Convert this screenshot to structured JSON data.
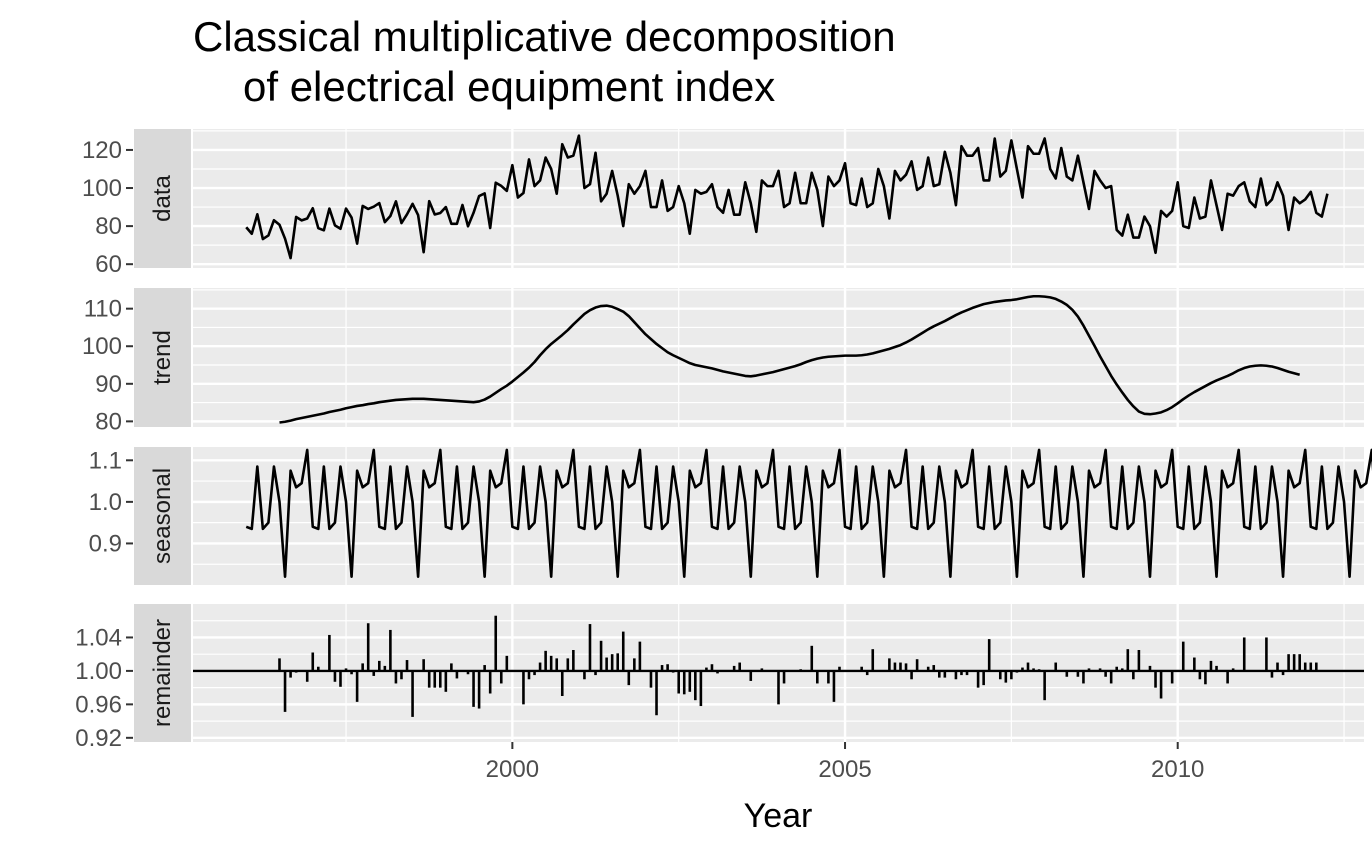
{
  "title_line1": "Classical multiplicative decomposition",
  "title_line2": "of electrical equipment index",
  "chart_data": {
    "type": "line",
    "xlabel": "Year",
    "x_ticks": [
      2000,
      2005,
      2010
    ],
    "xlim": [
      1995.2,
      2012.8
    ],
    "start": 1996.0,
    "panels": [
      {
        "name": "data",
        "type": "line",
        "ylim": [
          58,
          131
        ],
        "y_ticks": [
          60,
          80,
          100,
          120
        ],
        "y_tick_labels": [
          "60",
          "80",
          "100",
          "120"
        ],
        "values": [
          79.4,
          76.0,
          86.2,
          73.2,
          75.1,
          83.1,
          80.7,
          73.4,
          63.2,
          84.8,
          83.0,
          84.0,
          89.4,
          78.9,
          77.8,
          89.2,
          80.4,
          78.6,
          89.2,
          84.5,
          70.8,
          90.6,
          89.0,
          90.2,
          92.1,
          82.1,
          85.3,
          93.0,
          81.6,
          86.2,
          91.7,
          85.8,
          66.3,
          93.1,
          86.1,
          86.9,
          90.0,
          81.2,
          81.2,
          91.1,
          79.9,
          87.0,
          95.8,
          97.2,
          79.0,
          102.8,
          101.1,
          98.5,
          112.0,
          95.0,
          97.4,
          115.0,
          101.0,
          104.0,
          116.0,
          110.0,
          97.0,
          123.0,
          116.0,
          117.0,
          127.5,
          100.0,
          102.0,
          118.5,
          93.0,
          97.0,
          109.0,
          96.0,
          80.0,
          102.0,
          97.0,
          101.0,
          109.0,
          90.0,
          90.0,
          104.0,
          88.0,
          90.0,
          101.0,
          92.0,
          76.0,
          99.0,
          97.0,
          98.0,
          102.0,
          90.0,
          87.0,
          99.0,
          86.0,
          86.0,
          103.0,
          92.0,
          77.0,
          104.0,
          101.0,
          101.0,
          109.0,
          90.0,
          92.0,
          108.0,
          92.0,
          92.0,
          108.0,
          99.0,
          80.0,
          106.0,
          101.0,
          104.0,
          113.0,
          92.0,
          91.0,
          105.0,
          90.0,
          92.0,
          110.0,
          101.0,
          84.0,
          109.0,
          104.0,
          107.0,
          114.0,
          99.0,
          101.0,
          116.0,
          101.0,
          102.0,
          119.0,
          108.0,
          91.0,
          122.0,
          117.0,
          117.0,
          121.0,
          104.0,
          104.0,
          126.0,
          106.0,
          109.0,
          125.0,
          110.0,
          95.0,
          122.0,
          118.0,
          118.0,
          126.0,
          110.0,
          105.0,
          121.0,
          106.0,
          104.0,
          117.0,
          103.0,
          89.0,
          109.0,
          104.0,
          100.0,
          101.0,
          78.0,
          75.0,
          86.0,
          74.0,
          74.0,
          85.0,
          80.0,
          66.0,
          88.0,
          85.0,
          88.0,
          103.0,
          80.0,
          79.0,
          95.0,
          84.0,
          85.0,
          104.0,
          91.0,
          78.0,
          97.0,
          96.0,
          101.0,
          103.0,
          93.0,
          90.0,
          105.0,
          91.0,
          94.0,
          103.0,
          96.0,
          78.0,
          95.0,
          92.0,
          94.0,
          98.0,
          87.0,
          85.0,
          97.0
        ]
      },
      {
        "name": "trend",
        "type": "line",
        "ylim": [
          78.5,
          115.5
        ],
        "y_ticks": [
          80,
          90,
          100,
          110
        ],
        "y_tick_labels": [
          "80",
          "90",
          "100",
          "110"
        ],
        "offset": 6,
        "values": [
          79.7,
          79.9,
          80.2,
          80.6,
          80.9,
          81.2,
          81.5,
          81.8,
          82.1,
          82.5,
          82.8,
          83.1,
          83.5,
          83.8,
          84.1,
          84.3,
          84.6,
          84.8,
          85.1,
          85.3,
          85.5,
          85.7,
          85.8,
          85.9,
          86.0,
          86.0,
          86.0,
          85.9,
          85.8,
          85.7,
          85.6,
          85.5,
          85.4,
          85.3,
          85.2,
          85.1,
          85.3,
          85.8,
          86.6,
          87.6,
          88.6,
          89.5,
          90.6,
          91.8,
          93.0,
          94.3,
          95.8,
          97.6,
          99.2,
          100.6,
          101.8,
          103.0,
          104.3,
          105.8,
          107.2,
          108.6,
          109.6,
          110.3,
          110.7,
          110.8,
          110.5,
          109.9,
          109.2,
          108.0,
          106.4,
          104.8,
          103.2,
          101.9,
          100.6,
          99.5,
          98.4,
          97.6,
          96.9,
          96.2,
          95.5,
          95.0,
          94.7,
          94.4,
          94.1,
          93.7,
          93.3,
          93.0,
          92.7,
          92.4,
          92.1,
          92.0,
          92.2,
          92.5,
          92.8,
          93.1,
          93.5,
          93.9,
          94.3,
          94.7,
          95.2,
          95.8,
          96.3,
          96.7,
          97.0,
          97.2,
          97.3,
          97.4,
          97.5,
          97.5,
          97.5,
          97.6,
          97.8,
          98.1,
          98.5,
          98.9,
          99.3,
          99.8,
          100.3,
          101.0,
          101.8,
          102.7,
          103.6,
          104.5,
          105.3,
          106.0,
          106.7,
          107.5,
          108.3,
          109.0,
          109.6,
          110.2,
          110.7,
          111.2,
          111.5,
          111.8,
          112.0,
          112.2,
          112.3,
          112.5,
          112.8,
          113.1,
          113.3,
          113.3,
          113.2,
          113.0,
          112.6,
          111.9,
          111.0,
          109.7,
          107.9,
          105.5,
          102.8,
          100.1,
          97.3,
          94.7,
          92.1,
          89.8,
          87.7,
          85.7,
          84.0,
          82.6,
          82.0,
          81.9,
          82.1,
          82.4,
          83.0,
          83.8,
          84.8,
          85.9,
          86.9,
          87.8,
          88.6,
          89.4,
          90.2,
          90.9,
          91.5,
          92.1,
          92.8,
          93.6,
          94.2,
          94.6,
          94.8,
          94.9,
          94.8,
          94.6,
          94.2,
          93.7,
          93.2,
          92.8,
          92.4
        ]
      },
      {
        "name": "seasonal",
        "type": "line",
        "ylim": [
          0.8,
          1.132
        ],
        "y_ticks": [
          0.9,
          1.0,
          1.1
        ],
        "y_tick_labels": [
          "0.9",
          "1.0",
          "1.1"
        ],
        "pattern": [
          0.94,
          0.935,
          1.085,
          0.935,
          0.95,
          1.085,
          1.0,
          0.82,
          1.075,
          1.035,
          1.045,
          1.125
        ],
        "values": [
          0.94,
          0.935,
          1.085,
          0.935,
          0.95,
          1.085,
          1.0,
          0.82,
          1.075,
          1.035,
          1.045,
          1.125,
          0.94,
          0.935,
          1.085,
          0.935,
          0.95,
          1.085,
          1.0,
          0.82,
          1.075,
          1.035,
          1.045,
          1.125,
          0.94,
          0.935,
          1.085,
          0.935,
          0.95,
          1.085,
          1.0,
          0.82,
          1.075,
          1.035,
          1.045,
          1.125,
          0.94,
          0.935,
          1.085,
          0.935,
          0.95,
          1.085,
          1.0,
          0.82,
          1.075,
          1.035,
          1.045,
          1.125,
          0.94,
          0.935,
          1.085,
          0.935,
          0.95,
          1.085,
          1.0,
          0.82,
          1.075,
          1.035,
          1.045,
          1.125,
          0.94,
          0.935,
          1.085,
          0.935,
          0.95,
          1.085,
          1.0,
          0.82,
          1.075,
          1.035,
          1.045,
          1.125,
          0.94,
          0.935,
          1.085,
          0.935,
          0.95,
          1.085,
          1.0,
          0.82,
          1.075,
          1.035,
          1.045,
          1.125,
          0.94,
          0.935,
          1.085,
          0.935,
          0.95,
          1.085,
          1.0,
          0.82,
          1.075,
          1.035,
          1.045,
          1.125,
          0.94,
          0.935,
          1.085,
          0.935,
          0.95,
          1.085,
          1.0,
          0.82,
          1.075,
          1.035,
          1.045,
          1.125,
          0.94,
          0.935,
          1.085,
          0.935,
          0.95,
          1.085,
          1.0,
          0.82,
          1.075,
          1.035,
          1.045,
          1.125,
          0.94,
          0.935,
          1.085,
          0.935,
          0.95,
          1.085,
          1.0,
          0.82,
          1.075,
          1.035,
          1.045,
          1.125,
          0.94,
          0.935,
          1.085,
          0.935,
          0.95,
          1.085,
          1.0,
          0.82,
          1.075,
          1.035,
          1.045,
          1.125,
          0.94,
          0.935,
          1.085,
          0.935,
          0.95,
          1.085,
          1.0,
          0.82,
          1.075,
          1.035,
          1.045,
          1.125,
          0.94,
          0.935,
          1.085,
          0.935,
          0.95,
          1.085,
          1.0,
          0.82,
          1.075,
          1.035,
          1.045,
          1.125,
          0.94,
          0.935,
          1.085,
          0.935,
          0.95,
          1.085,
          1.0,
          0.82,
          1.075,
          1.035,
          1.045,
          1.125,
          0.94,
          0.935,
          1.085,
          0.935,
          0.95,
          1.085,
          1.0,
          0.82,
          1.075,
          1.035,
          1.045,
          1.125,
          0.94,
          0.935,
          1.085,
          0.935,
          0.95,
          1.085,
          1.0,
          0.82,
          1.075,
          1.035,
          1.045,
          1.125,
          0.94,
          0.935,
          1.085
        ]
      },
      {
        "name": "remainder",
        "type": "bar",
        "ylim": [
          0.915,
          1.08
        ],
        "y_ticks": [
          0.92,
          0.96,
          1.0,
          1.04
        ],
        "y_tick_labels": [
          "0.92",
          "0.96",
          "1.00",
          "1.04"
        ],
        "baseline": 1.0,
        "offset": 6,
        "values": [
          1.015,
          0.951,
          0.992,
          0.998,
          1.001,
          0.987,
          1.022,
          1.005,
          1.001,
          1.043,
          0.987,
          0.981,
          1.003,
          0.996,
          0.963,
          1.009,
          1.057,
          0.994,
          1.012,
          1.006,
          1.049,
          0.985,
          0.99,
          1.013,
          0.945,
          1.001,
          1.014,
          0.98,
          0.98,
          0.98,
          0.975,
          1.009,
          0.991,
          1.0,
          0.996,
          0.957,
          0.955,
          1.007,
          0.973,
          1.066,
          0.985,
          1.018,
          1.0,
          1.0,
          0.96,
          0.99,
          0.995,
          1.01,
          1.024,
          1.018,
          1.015,
          0.97,
          1.015,
          1.025,
          1.0,
          0.99,
          1.056,
          0.995,
          1.036,
          1.016,
          1.02,
          1.021,
          1.047,
          0.983,
          1.015,
          1.035,
          1.0,
          0.98,
          0.947,
          1.007,
          1.008,
          0.998,
          0.973,
          0.972,
          0.975,
          0.965,
          0.958,
          1.004,
          1.008,
          0.997,
          1.0,
          1.0,
          1.006,
          1.01,
          1.0,
          0.988,
          1.0,
          1.003,
          1.0,
          1.0,
          0.96,
          0.985,
          1.0,
          1.0,
          1.002,
          1.0,
          1.03,
          0.985,
          1.0,
          0.985,
          0.963,
          1.005,
          1.001,
          1.0,
          0.999,
          1.005,
          0.995,
          1.026,
          1.001,
          0.999,
          1.015,
          1.01,
          1.01,
          1.009,
          0.99,
          1.014,
          1.0,
          1.005,
          1.007,
          0.992,
          0.992,
          1.0,
          0.99,
          0.995,
          0.995,
          1.0,
          0.98,
          0.983,
          1.038,
          1.0,
          0.99,
          0.986,
          0.99,
          0.998,
          1.004,
          1.01,
          1.003,
          1.002,
          0.965,
          1.0,
          1.01,
          1.0,
          0.993,
          1.0,
          0.993,
          0.985,
          1.003,
          1.0,
          1.003,
          0.993,
          0.985,
          1.005,
          1.003,
          1.026,
          0.99,
          1.025,
          1.0,
          1.006,
          0.98,
          0.967,
          1.0,
          0.985,
          1.0,
          1.035,
          1.0,
          1.016,
          0.99,
          0.984,
          1.012,
          1.006,
          1.0,
          0.985,
          1.003,
          1.0,
          1.04,
          1.0,
          1.0,
          1.0,
          1.04,
          0.992,
          1.01,
          0.995,
          1.02,
          1.02,
          1.02,
          1.01,
          1.01,
          1.01
        ]
      }
    ]
  }
}
